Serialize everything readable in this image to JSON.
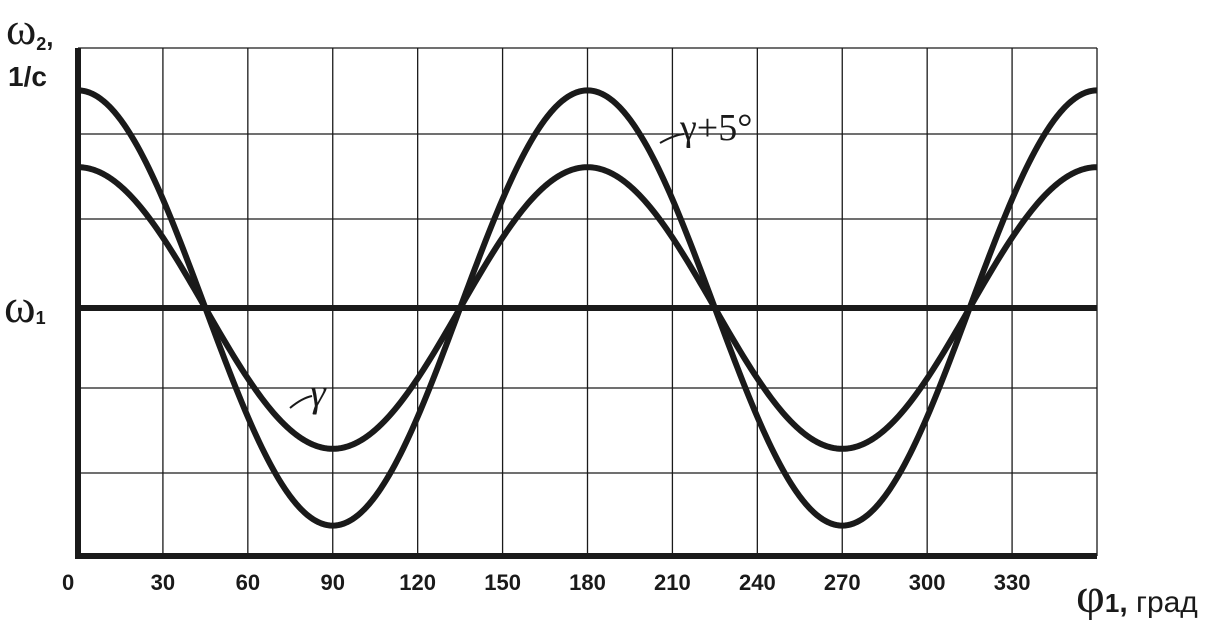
{
  "chart_data": {
    "type": "line",
    "xlabel_symbol": "φ",
    "xlabel_subscript": "1",
    "xlabel_suffix": "град",
    "ylabel_symbol": "ω",
    "ylabel_subscript": "2",
    "ylabel_unit": "1/с",
    "y_ref_symbol": "ω",
    "y_ref_subscript": "1",
    "x_ticks": [
      0,
      30,
      60,
      90,
      120,
      150,
      180,
      210,
      240,
      270,
      300,
      330
    ],
    "xlim": [
      0,
      360
    ],
    "grid": true,
    "series": [
      {
        "name": "γ",
        "function": "cos2x",
        "x": [
          0,
          45,
          90,
          135,
          180,
          225,
          270,
          315,
          360
        ],
        "values": [
          0.55,
          0,
          -0.55,
          0,
          0.55,
          0,
          -0.55,
          0,
          0.55
        ]
      },
      {
        "name": "γ+5°",
        "function": "cos2x",
        "x": [
          0,
          45,
          90,
          135,
          180,
          225,
          270,
          315,
          360
        ],
        "values": [
          0.85,
          0,
          -0.85,
          0,
          0.85,
          0,
          -0.85,
          0,
          0.85
        ]
      }
    ],
    "annotations": [
      {
        "text": "γ",
        "target": "γ"
      },
      {
        "text": "γ+5°",
        "target": "γ+5°"
      }
    ]
  }
}
